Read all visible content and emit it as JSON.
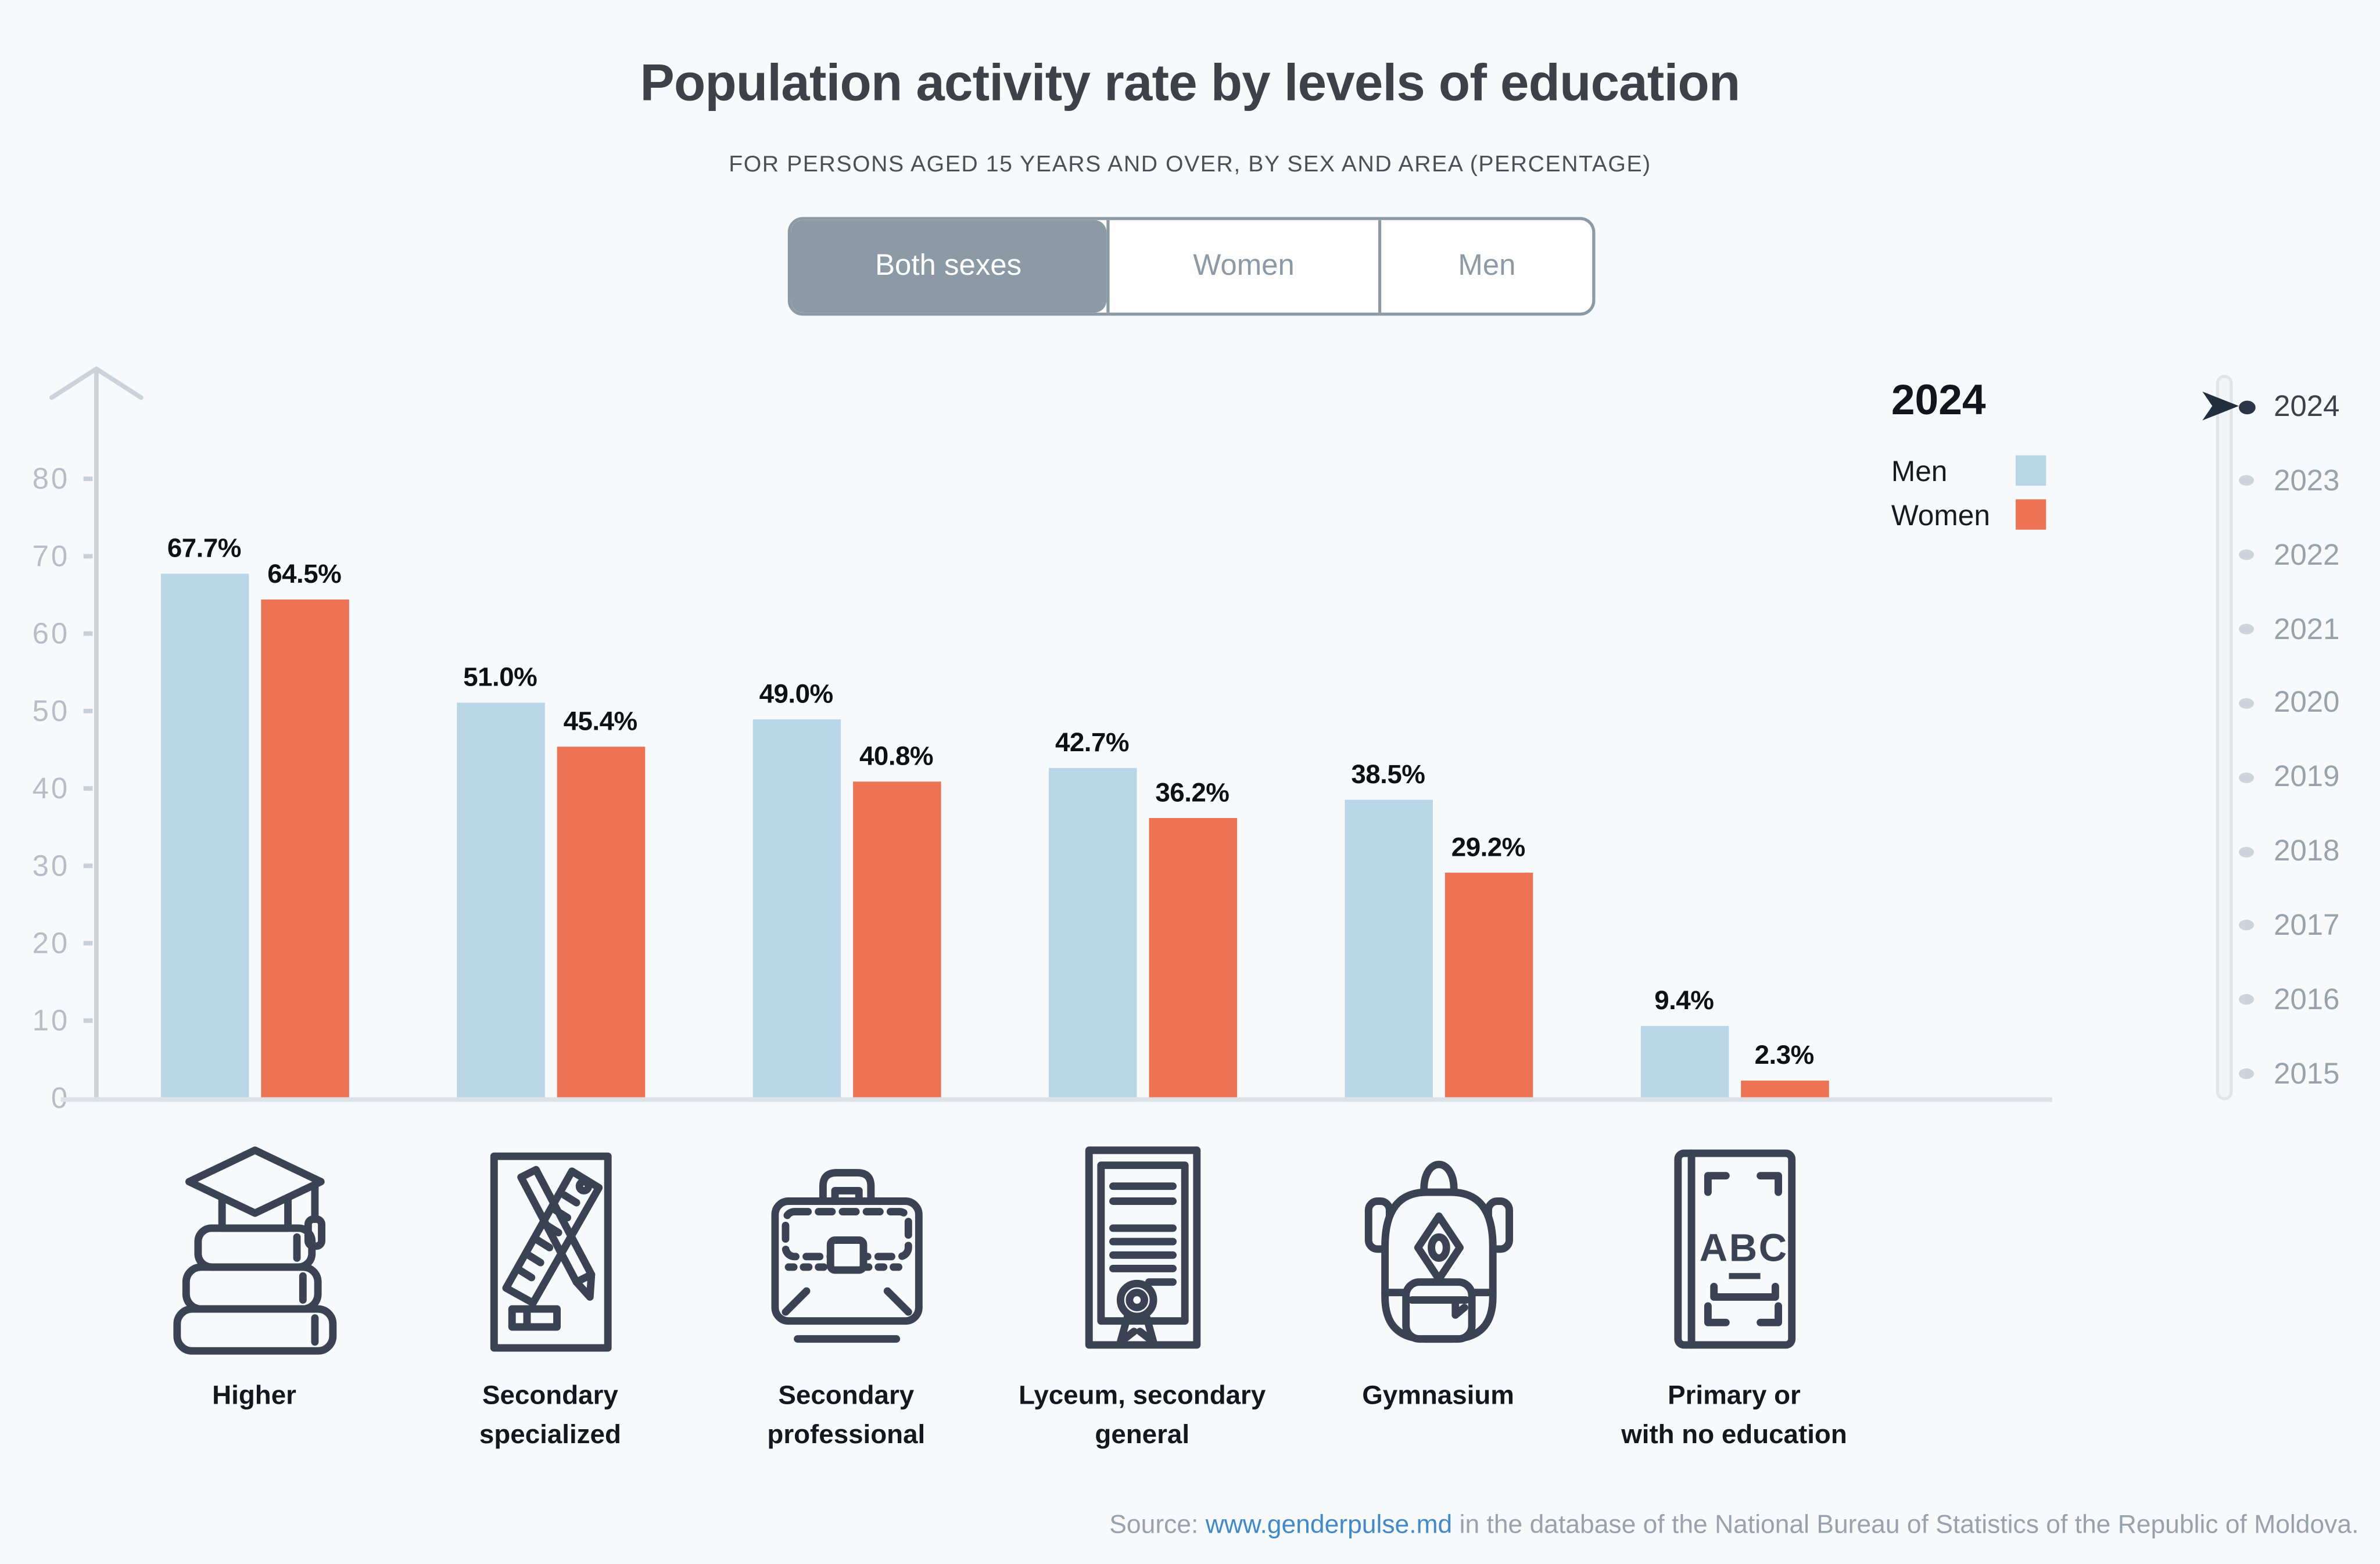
{
  "page": {
    "background": "#f8f9fa"
  },
  "header": {
    "title": "Population activity rate by levels of education",
    "subtitle": "FOR PERSONS AGED 15 YEARS AND OVER, BY SEX AND AREA (PERCENTAGE)"
  },
  "toggle": {
    "options": [
      {
        "label": "Both sexes",
        "selected": true
      },
      {
        "label": "Women",
        "selected": false
      },
      {
        "label": "Men",
        "selected": false
      }
    ]
  },
  "legend": {
    "year": "2024",
    "items": [
      {
        "label": "Men",
        "color": "#b9d6e8"
      },
      {
        "label": "Women",
        "color": "#ec7454"
      }
    ]
  },
  "timeline": {
    "years": [
      "2024",
      "2023",
      "2022",
      "2021",
      "2020",
      "2019",
      "2018",
      "2017",
      "2016",
      "2015"
    ],
    "selected_year": "2024"
  },
  "chart_data": {
    "type": "bar",
    "title": "Population activity rate by levels of education",
    "subtitle": "For persons aged 15 years and over, by sex and area (percentage)",
    "categories": [
      "Higher",
      "Secondary specialized",
      "Secondary professional",
      "Lyceum, secondary general",
      "Gymnasium",
      "Primary or with no education"
    ],
    "categories_lines": [
      [
        "Higher"
      ],
      [
        "Secondary",
        "specialized"
      ],
      [
        "Secondary",
        "professional"
      ],
      [
        "Lyceum, secondary",
        "general"
      ],
      [
        "Gymnasium"
      ],
      [
        "Primary or",
        "with no education"
      ]
    ],
    "series": [
      {
        "name": "Men",
        "color": "#b9d6e8",
        "values": [
          67.7,
          51.0,
          49.0,
          42.7,
          38.5,
          9.4
        ]
      },
      {
        "name": "Women",
        "color": "#ec7454",
        "values": [
          64.5,
          45.4,
          40.8,
          36.2,
          29.2,
          2.3
        ]
      }
    ],
    "xlabel": "",
    "ylabel": "",
    "ylim": [
      0,
      80
    ],
    "yticks": [
      0,
      10,
      20,
      30,
      40,
      50,
      60,
      70,
      80
    ],
    "grid": false,
    "value_suffix": "%",
    "value_decimals": 1,
    "legend_position": "top-right",
    "year_shown": "2024"
  },
  "icons": {
    "category_icons": [
      "graduation-books-icon",
      "pencil-ruler-board-icon",
      "briefcase-icon",
      "certificate-icon",
      "backpack-icon",
      "abc-book-icon"
    ]
  },
  "colors": {
    "background": "#f8f9fa",
    "men_bar": "#b9d6e8",
    "women_bar": "#ec7454",
    "toggle_selected_bg": "#8c9aa6",
    "axis_gray": "#ccd2da",
    "tick_text": "#b6bdc7",
    "icon_stroke": "#3a4254",
    "timeline_selected": "#2b3547",
    "link_blue": "#4189c9"
  },
  "source": {
    "prefix": "Source: ",
    "link_text": "www.genderpulse.md",
    "suffix": " in the database of the National Bureau of Statistics of the Republic of Moldova."
  }
}
